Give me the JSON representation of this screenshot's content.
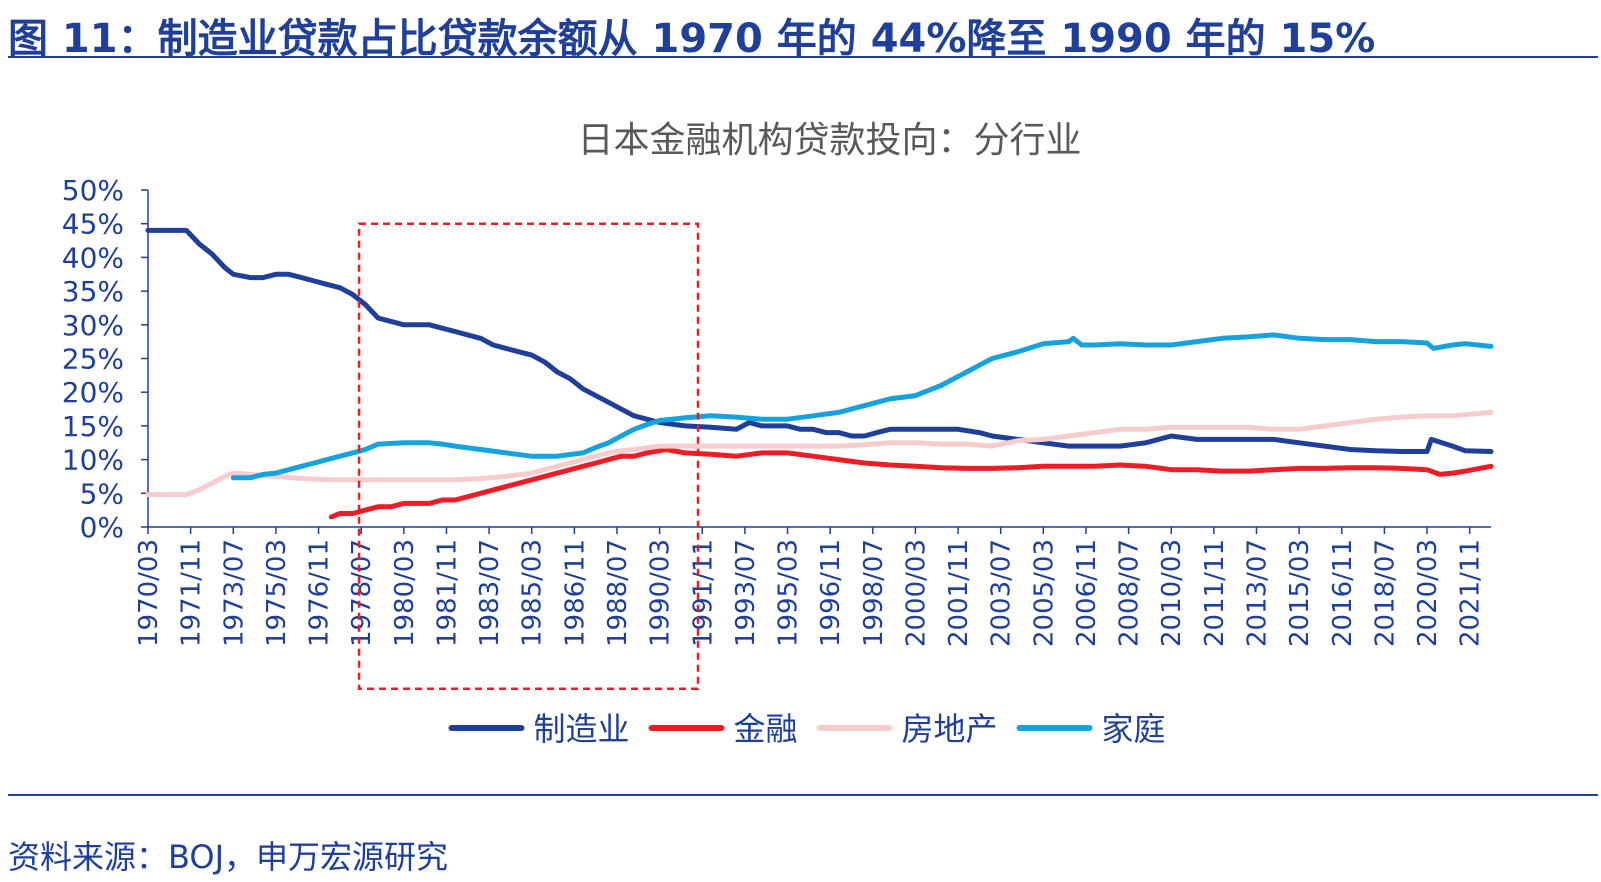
{
  "figure": {
    "title": "图 11：制造业贷款占比贷款余额从 1970 年的 44%降至 1990 年的 15%",
    "source": "资料来源：BOJ，申万宏源研究"
  },
  "chart_data": {
    "type": "line",
    "title": "日本金融机构贷款投向：分行业",
    "y_unit": "%",
    "ylim": [
      0,
      50
    ],
    "yticks": [
      0,
      5,
      10,
      15,
      20,
      25,
      30,
      35,
      40,
      45,
      50
    ],
    "ytick_labels": [
      "0%",
      "5%",
      "10%",
      "15%",
      "20%",
      "25%",
      "30%",
      "35%",
      "40%",
      "45%",
      "50%"
    ],
    "xlim": [
      "1970/03",
      "2022/09"
    ],
    "xtick_labels": [
      "1970/03",
      "1971/11",
      "1973/07",
      "1975/03",
      "1976/11",
      "1978/07",
      "1980/03",
      "1981/11",
      "1983/07",
      "1985/03",
      "1986/11",
      "1988/07",
      "1990/03",
      "1991/11",
      "1993/07",
      "1995/03",
      "1996/11",
      "1998/07",
      "2000/03",
      "2001/11",
      "2003/07",
      "2005/03",
      "2006/11",
      "2008/07",
      "2010/03",
      "2011/11",
      "2013/07",
      "2015/03",
      "2016/11",
      "2018/07",
      "2020/03",
      "2021/11"
    ],
    "legend_position": "bottom",
    "grid": false,
    "highlight_box": {
      "x": [
        "1978/06",
        "1991/09"
      ],
      "y": [
        -24,
        45
      ],
      "color": "#ee1c25"
    },
    "series": [
      {
        "name": "制造业",
        "color": "#1f3f99",
        "points": [
          [
            "1970/03",
            44
          ],
          [
            "1971/09",
            44
          ],
          [
            "1972/03",
            42
          ],
          [
            "1972/09",
            40.5
          ],
          [
            "1973/03",
            38.5
          ],
          [
            "1973/07",
            37.5
          ],
          [
            "1974/03",
            37
          ],
          [
            "1974/09",
            37
          ],
          [
            "1975/03",
            37.5
          ],
          [
            "1975/09",
            37.5
          ],
          [
            "1976/03",
            37
          ],
          [
            "1976/09",
            36.5
          ],
          [
            "1977/03",
            36
          ],
          [
            "1977/09",
            35.5
          ],
          [
            "1978/03",
            34.5
          ],
          [
            "1978/09",
            33
          ],
          [
            "1979/03",
            31
          ],
          [
            "1979/09",
            30.5
          ],
          [
            "1980/03",
            30
          ],
          [
            "1980/09",
            30
          ],
          [
            "1981/03",
            30
          ],
          [
            "1981/09",
            29.5
          ],
          [
            "1982/03",
            29
          ],
          [
            "1982/09",
            28.5
          ],
          [
            "1983/03",
            28
          ],
          [
            "1983/09",
            27
          ],
          [
            "1984/03",
            26.5
          ],
          [
            "1984/09",
            26
          ],
          [
            "1985/03",
            25.5
          ],
          [
            "1985/09",
            24.5
          ],
          [
            "1986/03",
            23
          ],
          [
            "1986/09",
            22
          ],
          [
            "1987/03",
            20.5
          ],
          [
            "1987/09",
            19.5
          ],
          [
            "1988/03",
            18.5
          ],
          [
            "1988/09",
            17.5
          ],
          [
            "1989/03",
            16.5
          ],
          [
            "1989/09",
            16
          ],
          [
            "1990/03",
            15.5
          ],
          [
            "1991/03",
            15
          ],
          [
            "1992/03",
            14.8
          ],
          [
            "1993/03",
            14.5
          ],
          [
            "1993/09",
            15.5
          ],
          [
            "1994/03",
            15
          ],
          [
            "1995/03",
            15
          ],
          [
            "1995/09",
            14.5
          ],
          [
            "1996/03",
            14.5
          ],
          [
            "1996/09",
            14
          ],
          [
            "1997/03",
            14
          ],
          [
            "1997/09",
            13.5
          ],
          [
            "1998/03",
            13.5
          ],
          [
            "1998/09",
            14
          ],
          [
            "1999/03",
            14.5
          ],
          [
            "2000/03",
            14.5
          ],
          [
            "2001/03",
            14.5
          ],
          [
            "2001/11",
            14.5
          ],
          [
            "2002/09",
            14
          ],
          [
            "2003/03",
            13.5
          ],
          [
            "2004/03",
            13
          ],
          [
            "2005/03",
            12.5
          ],
          [
            "2006/03",
            12
          ],
          [
            "2007/03",
            12
          ],
          [
            "2008/03",
            12
          ],
          [
            "2009/03",
            12.5
          ],
          [
            "2010/03",
            13.5
          ],
          [
            "2011/03",
            13
          ],
          [
            "2012/03",
            13
          ],
          [
            "2013/03",
            13
          ],
          [
            "2014/03",
            13
          ],
          [
            "2015/03",
            12.5
          ],
          [
            "2016/03",
            12
          ],
          [
            "2017/03",
            11.5
          ],
          [
            "2018/03",
            11.3
          ],
          [
            "2019/03",
            11.2
          ],
          [
            "2020/03",
            11.2
          ],
          [
            "2020/05",
            13
          ],
          [
            "2021/03",
            12
          ],
          [
            "2021/09",
            11.3
          ],
          [
            "2022/09",
            11.2
          ]
        ]
      },
      {
        "name": "金融",
        "color": "#ee1c25",
        "points": [
          [
            "1977/05",
            1.5
          ],
          [
            "1977/09",
            2
          ],
          [
            "1978/03",
            2
          ],
          [
            "1978/09",
            2.5
          ],
          [
            "1979/03",
            3
          ],
          [
            "1979/09",
            3
          ],
          [
            "1980/03",
            3.5
          ],
          [
            "1981/03",
            3.5
          ],
          [
            "1981/09",
            4
          ],
          [
            "1982/03",
            4
          ],
          [
            "1982/09",
            4.5
          ],
          [
            "1983/03",
            5
          ],
          [
            "1983/09",
            5.5
          ],
          [
            "1984/03",
            6
          ],
          [
            "1984/09",
            6.5
          ],
          [
            "1985/03",
            7
          ],
          [
            "1985/09",
            7.5
          ],
          [
            "1986/03",
            8
          ],
          [
            "1986/09",
            8.5
          ],
          [
            "1987/03",
            9
          ],
          [
            "1987/09",
            9.5
          ],
          [
            "1988/03",
            10
          ],
          [
            "1988/09",
            10.5
          ],
          [
            "1989/03",
            10.5
          ],
          [
            "1989/09",
            11
          ],
          [
            "1990/06",
            11.5
          ],
          [
            "1991/03",
            11
          ],
          [
            "1992/03",
            10.8
          ],
          [
            "1993/03",
            10.5
          ],
          [
            "1994/03",
            11
          ],
          [
            "1995/03",
            11
          ],
          [
            "1996/03",
            10.5
          ],
          [
            "1997/03",
            10
          ],
          [
            "1998/03",
            9.5
          ],
          [
            "1999/03",
            9.2
          ],
          [
            "2000/03",
            9
          ],
          [
            "2001/03",
            8.8
          ],
          [
            "2002/03",
            8.7
          ],
          [
            "2003/03",
            8.7
          ],
          [
            "2004/03",
            8.8
          ],
          [
            "2005/03",
            9
          ],
          [
            "2006/03",
            9
          ],
          [
            "2007/03",
            9
          ],
          [
            "2008/03",
            9.2
          ],
          [
            "2009/03",
            9
          ],
          [
            "2010/03",
            8.5
          ],
          [
            "2011/03",
            8.5
          ],
          [
            "2012/03",
            8.3
          ],
          [
            "2013/03",
            8.3
          ],
          [
            "2014/03",
            8.5
          ],
          [
            "2015/03",
            8.7
          ],
          [
            "2016/03",
            8.7
          ],
          [
            "2017/03",
            8.8
          ],
          [
            "2018/03",
            8.8
          ],
          [
            "2019/03",
            8.7
          ],
          [
            "2020/03",
            8.5
          ],
          [
            "2020/09",
            7.8
          ],
          [
            "2021/03",
            8
          ],
          [
            "2021/09",
            8.3
          ],
          [
            "2022/09",
            9
          ]
        ]
      },
      {
        "name": "房地产",
        "color": "#f8cccc",
        "points": [
          [
            "1970/03",
            4.8
          ],
          [
            "1971/09",
            4.8
          ],
          [
            "1972/03",
            5.5
          ],
          [
            "1972/09",
            6.5
          ],
          [
            "1973/03",
            7.5
          ],
          [
            "1973/07",
            8
          ],
          [
            "1974/03",
            7.8
          ],
          [
            "1975/03",
            7.5
          ],
          [
            "1976/03",
            7.2
          ],
          [
            "1977/03",
            7
          ],
          [
            "1978/03",
            7
          ],
          [
            "1979/03",
            7
          ],
          [
            "1980/03",
            7
          ],
          [
            "1981/03",
            7
          ],
          [
            "1982/03",
            7
          ],
          [
            "1983/03",
            7.2
          ],
          [
            "1984/03",
            7.5
          ],
          [
            "1985/03",
            8
          ],
          [
            "1985/09",
            8.5
          ],
          [
            "1986/03",
            9
          ],
          [
            "1986/09",
            9.5
          ],
          [
            "1987/03",
            10
          ],
          [
            "1987/09",
            10.5
          ],
          [
            "1988/03",
            11
          ],
          [
            "1988/09",
            11.3
          ],
          [
            "1989/03",
            11.5
          ],
          [
            "1990/03",
            12
          ],
          [
            "1991/03",
            12
          ],
          [
            "1992/03",
            12
          ],
          [
            "1993/03",
            12
          ],
          [
            "1994/03",
            12
          ],
          [
            "1995/03",
            12
          ],
          [
            "1996/03",
            12
          ],
          [
            "1997/03",
            12
          ],
          [
            "1998/03",
            12.2
          ],
          [
            "1999/03",
            12.5
          ],
          [
            "2000/03",
            12.5
          ],
          [
            "2001/03",
            12.3
          ],
          [
            "2002/03",
            12.3
          ],
          [
            "2003/03",
            12
          ],
          [
            "2004/03",
            12.8
          ],
          [
            "2005/03",
            13
          ],
          [
            "2006/03",
            13.5
          ],
          [
            "2007/03",
            14
          ],
          [
            "2008/03",
            14.5
          ],
          [
            "2009/03",
            14.5
          ],
          [
            "2010/03",
            14.8
          ],
          [
            "2011/03",
            14.8
          ],
          [
            "2012/03",
            14.8
          ],
          [
            "2013/03",
            14.8
          ],
          [
            "2014/03",
            14.5
          ],
          [
            "2015/03",
            14.5
          ],
          [
            "2016/03",
            15
          ],
          [
            "2017/03",
            15.5
          ],
          [
            "2018/03",
            16
          ],
          [
            "2019/03",
            16.3
          ],
          [
            "2020/03",
            16.5
          ],
          [
            "2021/03",
            16.5
          ],
          [
            "2022/09",
            17
          ]
        ]
      },
      {
        "name": "家庭",
        "color": "#15a3e0",
        "points": [
          [
            "1973/07",
            7.3
          ],
          [
            "1974/03",
            7.3
          ],
          [
            "1974/09",
            7.8
          ],
          [
            "1975/03",
            8
          ],
          [
            "1975/09",
            8.5
          ],
          [
            "1976/03",
            9
          ],
          [
            "1976/09",
            9.5
          ],
          [
            "1977/03",
            10
          ],
          [
            "1977/09",
            10.5
          ],
          [
            "1978/03",
            11
          ],
          [
            "1978/09",
            11.5
          ],
          [
            "1979/03",
            12.3
          ],
          [
            "1980/03",
            12.5
          ],
          [
            "1981/03",
            12.5
          ],
          [
            "1981/09",
            12.3
          ],
          [
            "1982/03",
            12
          ],
          [
            "1983/03",
            11.5
          ],
          [
            "1984/03",
            11
          ],
          [
            "1985/03",
            10.5
          ],
          [
            "1986/03",
            10.5
          ],
          [
            "1987/03",
            11
          ],
          [
            "1987/09",
            11.8
          ],
          [
            "1988/03",
            12.5
          ],
          [
            "1988/09",
            13.5
          ],
          [
            "1989/03",
            14.5
          ],
          [
            "1989/09",
            15.2
          ],
          [
            "1990/03",
            15.8
          ],
          [
            "1991/03",
            16.2
          ],
          [
            "1992/03",
            16.5
          ],
          [
            "1993/03",
            16.3
          ],
          [
            "1994/03",
            16
          ],
          [
            "1995/03",
            16
          ],
          [
            "1996/03",
            16.5
          ],
          [
            "1997/03",
            17
          ],
          [
            "1998/03",
            18
          ],
          [
            "1999/03",
            19
          ],
          [
            "2000/03",
            19.5
          ],
          [
            "2001/03",
            21
          ],
          [
            "2002/03",
            23
          ],
          [
            "2002/09",
            24
          ],
          [
            "2003/03",
            25
          ],
          [
            "2004/03",
            26
          ],
          [
            "2005/03",
            27.2
          ],
          [
            "2006/03",
            27.5
          ],
          [
            "2006/05",
            28
          ],
          [
            "2006/09",
            27
          ],
          [
            "2007/03",
            27
          ],
          [
            "2008/03",
            27.2
          ],
          [
            "2009/03",
            27
          ],
          [
            "2010/03",
            27
          ],
          [
            "2011/03",
            27.5
          ],
          [
            "2012/03",
            28
          ],
          [
            "2013/03",
            28.2
          ],
          [
            "2014/03",
            28.5
          ],
          [
            "2015/03",
            28
          ],
          [
            "2016/03",
            27.8
          ],
          [
            "2017/03",
            27.8
          ],
          [
            "2018/03",
            27.5
          ],
          [
            "2019/03",
            27.5
          ],
          [
            "2020/03",
            27.3
          ],
          [
            "2020/06",
            26.5
          ],
          [
            "2021/03",
            27
          ],
          [
            "2021/09",
            27.2
          ],
          [
            "2022/09",
            26.8
          ]
        ]
      }
    ]
  }
}
